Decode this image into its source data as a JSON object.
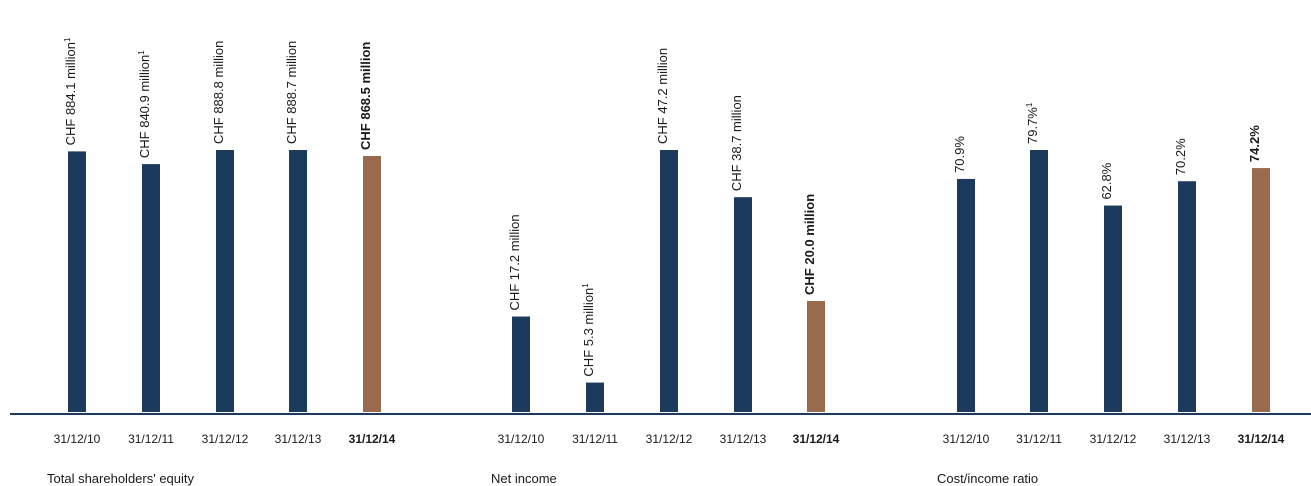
{
  "colors": {
    "bar": "#1b3a5c",
    "highlight": "#9a6a4f",
    "axis": "#1b3a5c",
    "text": "#1a1a1a"
  },
  "chart_data": [
    {
      "type": "bar",
      "title": "Total shareholders' equity",
      "categories": [
        "31/12/10",
        "31/12/11",
        "31/12/12",
        "31/12/13",
        "31/12/14"
      ],
      "values": [
        884.1,
        840.9,
        888.8,
        888.7,
        868.5
      ],
      "data_labels": [
        "CHF 884.1 million",
        "CHF 840.9 million",
        "CHF 888.8 million",
        "CHF 888.7 million",
        "CHF 868.5 million"
      ],
      "footnote_marks": [
        "1",
        "1",
        "",
        "",
        ""
      ],
      "highlight_index": 4,
      "unit": "CHF million"
    },
    {
      "type": "bar",
      "title": "Net income",
      "categories": [
        "31/12/10",
        "31/12/11",
        "31/12/12",
        "31/12/13",
        "31/12/14"
      ],
      "values": [
        17.2,
        5.3,
        47.2,
        38.7,
        20.0
      ],
      "data_labels": [
        "CHF 17.2 million",
        "CHF 5.3 million",
        "CHF 47.2 million",
        "CHF 38.7 million",
        "CHF 20.0 million"
      ],
      "footnote_marks": [
        "",
        "1",
        "",
        "",
        ""
      ],
      "highlight_index": 4,
      "unit": "CHF million"
    },
    {
      "type": "bar",
      "title": "Cost/income ratio",
      "categories": [
        "31/12/10",
        "31/12/11",
        "31/12/12",
        "31/12/13",
        "31/12/14"
      ],
      "values": [
        70.9,
        79.7,
        62.8,
        70.2,
        74.2
      ],
      "data_labels": [
        "70.9%",
        "79.7%",
        "62.8%",
        "70.2%",
        "74.2%"
      ],
      "footnote_marks": [
        "",
        "1",
        "",
        "",
        ""
      ],
      "highlight_index": 4,
      "unit": "%"
    }
  ]
}
